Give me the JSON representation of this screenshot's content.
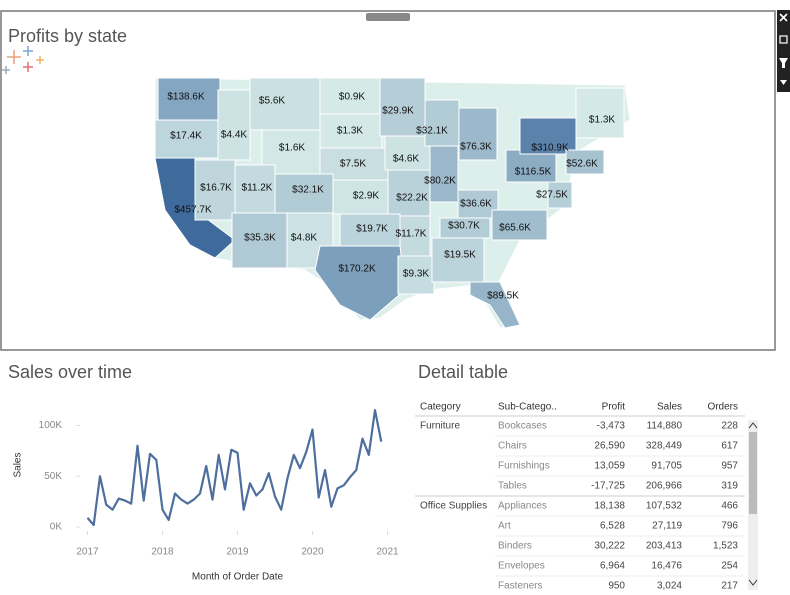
{
  "chart_data": [
    {
      "type": "map",
      "title": "Profits by state",
      "regions": [
        {
          "value": 138600,
          "label": "$138.6K"
        },
        {
          "value": 17400,
          "label": "$17.4K"
        },
        {
          "value": 457700,
          "label": "$457.7K"
        },
        {
          "value": 4400,
          "label": "$4.4K"
        },
        {
          "value": 5600,
          "label": "$5.6K"
        },
        {
          "value": 900,
          "label": "$0.9K"
        },
        {
          "value": 1300,
          "label": "$1.3K"
        },
        {
          "value": 1600,
          "label": "$1.6K"
        },
        {
          "value": 7500,
          "label": "$7.5K"
        },
        {
          "value": 16700,
          "label": "$16.7K"
        },
        {
          "value": 11200,
          "label": "$11.2K"
        },
        {
          "value": 32100,
          "label": "$32.1K"
        },
        {
          "value": 2900,
          "label": "$2.9K"
        },
        {
          "value": 29900,
          "label": "$29.9K"
        },
        {
          "value": 4600,
          "label": "$4.6K"
        },
        {
          "value": 32100,
          "label": "$32.1K"
        },
        {
          "value": 80200,
          "label": "$80.2K"
        },
        {
          "value": 22200,
          "label": "$22.2K"
        },
        {
          "value": 76300,
          "label": "$76.3K"
        },
        {
          "value": 36600,
          "label": "$36.6K"
        },
        {
          "value": 116500,
          "label": "$116.5K"
        },
        {
          "value": 310900,
          "label": "$310.9K"
        },
        {
          "value": 1300,
          "label": "$1.3K"
        },
        {
          "value": 52600,
          "label": "$52.6K"
        },
        {
          "value": 27500,
          "label": "$27.5K"
        },
        {
          "value": 30700,
          "label": "$30.7K"
        },
        {
          "value": 65600,
          "label": "$65.6K"
        },
        {
          "value": 35300,
          "label": "$35.3K"
        },
        {
          "value": 4800,
          "label": "$4.8K"
        },
        {
          "value": 19700,
          "label": "$19.7K"
        },
        {
          "value": 11700,
          "label": "$11.7K"
        },
        {
          "value": 170200,
          "label": "$170.2K"
        },
        {
          "value": 9300,
          "label": "$9.3K"
        },
        {
          "value": 19500,
          "label": "$19.5K"
        },
        {
          "value": 89500,
          "label": "$89.5K"
        }
      ]
    },
    {
      "type": "line",
      "title": "Sales over time",
      "x_label": "Month of Order Date",
      "y_label": "Sales",
      "color": "#4e6f9e",
      "x": [
        2017,
        2017.083,
        2017.167,
        2017.25,
        2017.333,
        2017.417,
        2017.5,
        2017.583,
        2017.667,
        2017.75,
        2017.833,
        2017.917,
        2018,
        2018.083,
        2018.167,
        2018.25,
        2018.333,
        2018.417,
        2018.5,
        2018.583,
        2018.667,
        2018.75,
        2018.833,
        2018.917,
        2019,
        2019.083,
        2019.167,
        2019.25,
        2019.333,
        2019.417,
        2019.5,
        2019.583,
        2019.667,
        2019.75,
        2019.833,
        2019.917,
        2020,
        2020.083,
        2020.167,
        2020.25,
        2020.333,
        2020.417,
        2020.5,
        2020.583,
        2020.667,
        2020.75,
        2020.833,
        2020.917
      ],
      "values": [
        9000,
        2000,
        50000,
        22000,
        17000,
        28000,
        26000,
        23000,
        80000,
        26000,
        72000,
        66000,
        17000,
        7000,
        33000,
        27000,
        23000,
        27000,
        33000,
        60000,
        27000,
        71000,
        37000,
        76000,
        73000,
        17000,
        43000,
        31000,
        37000,
        53000,
        30000,
        17000,
        48000,
        71000,
        58000,
        74000,
        96000,
        29000,
        56000,
        20000,
        38000,
        41000,
        49000,
        56000,
        87000,
        71000,
        115000,
        84000
      ],
      "xlim": [
        2016.9,
        2021.1
      ],
      "xticks": [
        2017,
        2018,
        2019,
        2020,
        2021
      ],
      "ylim": [
        0,
        125000
      ],
      "yticks": [
        {
          "value": 0,
          "label": "0K"
        },
        {
          "value": 50000,
          "label": "50K"
        },
        {
          "value": 100000,
          "label": "100K"
        }
      ]
    }
  ],
  "table": {
    "title": "Detail table",
    "columns": [
      "Category",
      "Sub-Catego..",
      "Profit",
      "Sales",
      "Orders"
    ],
    "groups": [
      {
        "category": "Furniture",
        "rows": [
          [
            "Bookcases",
            "-3,473",
            "114,880",
            "228"
          ],
          [
            "Chairs",
            "26,590",
            "328,449",
            "617"
          ],
          [
            "Furnishings",
            "13,059",
            "91,705",
            "957"
          ],
          [
            "Tables",
            "-17,725",
            "206,966",
            "319"
          ]
        ]
      },
      {
        "category": "Office Supplies",
        "rows": [
          [
            "Appliances",
            "18,138",
            "107,532",
            "466"
          ],
          [
            "Art",
            "6,528",
            "27,119",
            "796"
          ],
          [
            "Binders",
            "30,222",
            "203,413",
            "1,523"
          ],
          [
            "Envelopes",
            "6,964",
            "16,476",
            "254"
          ],
          [
            "Fasteners",
            "950",
            "3,024",
            "217"
          ]
        ]
      }
    ]
  }
}
